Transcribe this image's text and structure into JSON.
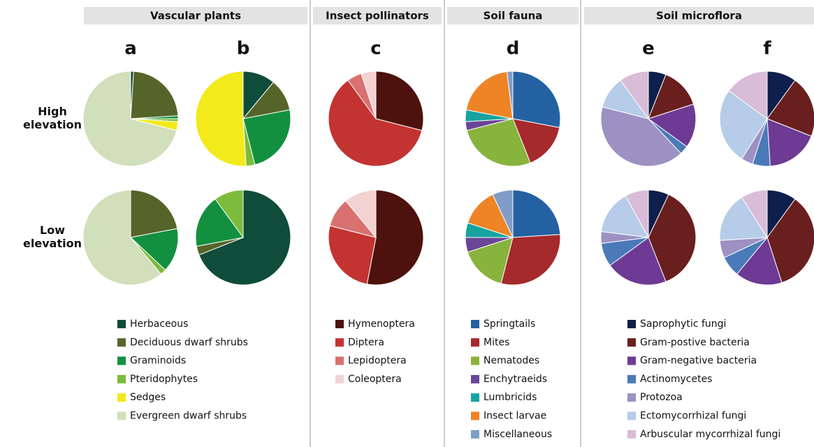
{
  "row_labels": [
    "High elevation",
    "Low elevation"
  ],
  "chart_data": [
    {
      "type": "pie",
      "title": "Vascular plants",
      "categories": [
        "Herbaceous",
        "Deciduous dwarf shrubs",
        "Graminoids",
        "Pteridophytes",
        "Sedges",
        "Evergreen dwarf shrubs"
      ],
      "colors": [
        "#0f4c3a",
        "#55652a",
        "#12903f",
        "#7dbb3c",
        "#f2ea1a",
        "#d1dfba"
      ],
      "panels": [
        {
          "label": "a",
          "series": [
            {
              "values": [
                1,
                23,
                1,
                1,
                3,
                71
              ]
            },
            {
              "values": [
                0,
                22,
                15,
                2,
                0,
                61
              ]
            }
          ]
        },
        {
          "label": "b",
          "series": [
            {
              "values": [
                11,
                11,
                24,
                3,
                51,
                0
              ]
            },
            {
              "values": [
                69,
                3,
                18,
                10,
                0,
                0
              ]
            }
          ]
        }
      ]
    },
    {
      "type": "pie",
      "title": "Insect pollinators",
      "categories": [
        "Hymenoptera",
        "Diptera",
        "Lepidoptera",
        "Coleoptera"
      ],
      "colors": [
        "#4d120d",
        "#c33331",
        "#d8716f",
        "#f3d2d2"
      ],
      "panels": [
        {
          "label": "c",
          "series": [
            {
              "values": [
                29,
                61,
                5,
                5
              ]
            },
            {
              "values": [
                53,
                26,
                10,
                11
              ]
            }
          ]
        }
      ]
    },
    {
      "type": "pie",
      "title": "Soil fauna",
      "categories": [
        "Springtails",
        "Mites",
        "Nematodes",
        "Enchytraeids",
        "Lumbricids",
        "Insect larvae",
        "Miscellaneous"
      ],
      "colors": [
        "#2461a0",
        "#a6292b",
        "#88b33c",
        "#6a4598",
        "#16a3a0",
        "#ee8425",
        "#809dc8"
      ],
      "panels": [
        {
          "label": "d",
          "series": [
            {
              "values": [
                28,
                16,
                27,
                3,
                4,
                20,
                2
              ]
            },
            {
              "values": [
                24,
                30,
                16,
                5,
                5,
                13,
                7
              ]
            }
          ]
        }
      ]
    },
    {
      "type": "pie",
      "title": "Soil microflora",
      "categories": [
        "Saprophytic fungi",
        "Gram-postive bacteria",
        "Gram-negative bacteria",
        "Actinomycetes",
        "Protozoa",
        "Ectomycorrhizal fungi",
        "Arbuscular mycorrhizal fungi"
      ],
      "colors": [
        "#0d1f4a",
        "#6a1f1f",
        "#6e3a94",
        "#4a7ab8",
        "#9c91c2",
        "#b6cce8",
        "#d9bcd8"
      ],
      "panels": [
        {
          "label": "e",
          "series": [
            {
              "values": [
                6,
                14,
                15,
                3,
                41,
                11,
                10
              ]
            },
            {
              "values": [
                7,
                37,
                21,
                8,
                4,
                15,
                8
              ]
            }
          ]
        },
        {
          "label": "f",
          "series": [
            {
              "values": [
                10,
                21,
                18,
                6,
                4,
                26,
                15
              ]
            },
            {
              "values": [
                10,
                35,
                16,
                7,
                6,
                17,
                9
              ]
            }
          ]
        }
      ]
    }
  ]
}
